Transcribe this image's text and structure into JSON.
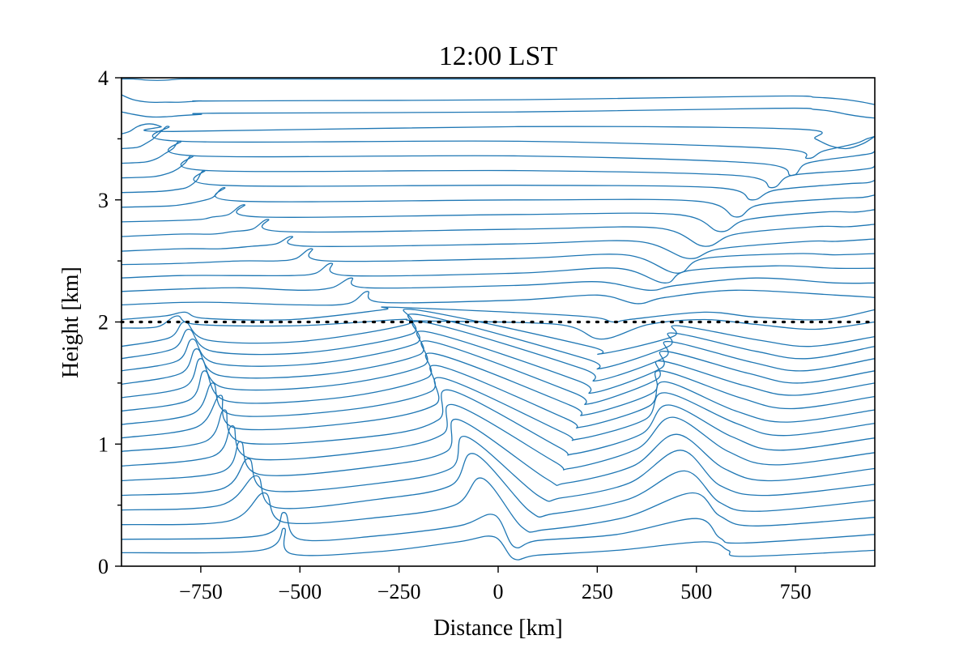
{
  "chart_data": {
    "type": "line",
    "title": "12:00 LST",
    "xlabel": "Distance [km]",
    "ylabel": "Height [km]",
    "xlim": [
      -950,
      950
    ],
    "ylim": [
      0,
      4
    ],
    "xticks": [
      -750,
      -500,
      -250,
      0,
      250,
      500,
      750
    ],
    "xtick_labels": [
      "−750",
      "−500",
      "−250",
      "0",
      "250",
      "500",
      "750"
    ],
    "yticks": [
      0,
      1,
      2,
      3,
      4
    ],
    "ytick_labels": [
      "0",
      "1",
      "2",
      "3",
      "4"
    ],
    "y_minor_ticks": [
      0.5,
      1.5,
      2.5,
      3.5
    ],
    "grid": false,
    "reference_line": {
      "y": 2.0,
      "style": "dotted",
      "color": "#000000"
    },
    "line_color": "#1f77b4",
    "series_note_levels_km": [
      0.115,
      0.23,
      0.345,
      0.46,
      0.575,
      0.69,
      0.805,
      0.92,
      1.035,
      1.15,
      1.265,
      1.38,
      1.495,
      1.61,
      1.725,
      1.84,
      1.955,
      2.08,
      2.2,
      2.32,
      2.44,
      2.56,
      2.68,
      2.8,
      2.92,
      3.04,
      3.16,
      3.28,
      3.4,
      3.52,
      3.64,
      3.76,
      3.88,
      4.0
    ],
    "series": [
      {
        "x": [
          -950,
          -600,
          -540,
          -520,
          -300,
          -100,
          -10,
          40,
          100,
          300,
          520,
          580,
          620,
          950
        ],
        "y": [
          0.11,
          0.13,
          0.31,
          0.1,
          0.12,
          0.2,
          0.24,
          0.06,
          0.09,
          0.13,
          0.2,
          0.13,
          0.08,
          0.13
        ]
      },
      {
        "x": [
          -950,
          -600,
          -540,
          -500,
          -300,
          -100,
          -10,
          40,
          100,
          300,
          500,
          560,
          620,
          950
        ],
        "y": [
          0.22,
          0.25,
          0.44,
          0.22,
          0.25,
          0.33,
          0.42,
          0.16,
          0.21,
          0.26,
          0.39,
          0.23,
          0.19,
          0.26
        ]
      },
      {
        "x": [
          -950,
          -680,
          -590,
          -540,
          -300,
          -110,
          -40,
          60,
          120,
          320,
          490,
          560,
          650,
          950
        ],
        "y": [
          0.34,
          0.37,
          0.6,
          0.36,
          0.4,
          0.5,
          0.72,
          0.32,
          0.3,
          0.4,
          0.6,
          0.41,
          0.33,
          0.4
        ]
      },
      {
        "x": [
          -950,
          -700,
          -610,
          -560,
          -300,
          -120,
          -60,
          80,
          140,
          330,
          470,
          560,
          660,
          950
        ],
        "y": [
          0.46,
          0.5,
          0.74,
          0.48,
          0.55,
          0.66,
          0.92,
          0.45,
          0.43,
          0.55,
          0.78,
          0.52,
          0.45,
          0.54
        ]
      },
      {
        "x": [
          -950,
          -700,
          -630,
          -580,
          -300,
          -120,
          -80,
          100,
          160,
          330,
          460,
          560,
          680,
          950
        ],
        "y": [
          0.58,
          0.63,
          0.88,
          0.62,
          0.68,
          0.8,
          1.06,
          0.58,
          0.56,
          0.68,
          0.95,
          0.66,
          0.58,
          0.67
        ]
      },
      {
        "x": [
          -950,
          -700,
          -650,
          -600,
          -300,
          -130,
          -100,
          120,
          170,
          340,
          450,
          570,
          690,
          950
        ],
        "y": [
          0.7,
          0.77,
          1.02,
          0.75,
          0.82,
          0.94,
          1.2,
          0.72,
          0.68,
          0.82,
          1.08,
          0.8,
          0.7,
          0.8
        ]
      },
      {
        "x": [
          -950,
          -720,
          -670,
          -620,
          -300,
          -140,
          -110,
          140,
          180,
          350,
          440,
          580,
          700,
          950
        ],
        "y": [
          0.82,
          0.9,
          1.15,
          0.88,
          0.95,
          1.08,
          1.32,
          0.86,
          0.8,
          0.96,
          1.22,
          0.94,
          0.83,
          0.93
        ]
      },
      {
        "x": [
          -950,
          -740,
          -690,
          -640,
          -300,
          -150,
          -120,
          150,
          190,
          360,
          430,
          590,
          710,
          950
        ],
        "y": [
          0.94,
          1.02,
          1.28,
          1.01,
          1.07,
          1.2,
          1.44,
          0.98,
          0.92,
          1.08,
          1.32,
          1.06,
          0.95,
          1.05
        ]
      },
      {
        "x": [
          -950,
          -760,
          -700,
          -660,
          -350,
          -160,
          -140,
          160,
          200,
          370,
          420,
          600,
          720,
          950
        ],
        "y": [
          1.05,
          1.14,
          1.4,
          1.13,
          1.18,
          1.32,
          1.54,
          1.1,
          1.04,
          1.2,
          1.42,
          1.17,
          1.07,
          1.17
        ]
      },
      {
        "x": [
          -950,
          -770,
          -720,
          -670,
          -380,
          -170,
          -150,
          170,
          210,
          380,
          420,
          600,
          730,
          950
        ],
        "y": [
          1.16,
          1.25,
          1.5,
          1.24,
          1.28,
          1.43,
          1.64,
          1.21,
          1.14,
          1.31,
          1.51,
          1.27,
          1.18,
          1.28
        ]
      },
      {
        "x": [
          -950,
          -780,
          -740,
          -680,
          -400,
          -180,
          -160,
          180,
          220,
          390,
          410,
          610,
          740,
          950
        ],
        "y": [
          1.27,
          1.36,
          1.6,
          1.35,
          1.38,
          1.54,
          1.74,
          1.32,
          1.24,
          1.42,
          1.6,
          1.38,
          1.29,
          1.39
        ]
      },
      {
        "x": [
          -950,
          -790,
          -750,
          -690,
          -420,
          -190,
          -170,
          190,
          230,
          400,
          410,
          620,
          750,
          950
        ],
        "y": [
          1.38,
          1.47,
          1.7,
          1.46,
          1.48,
          1.64,
          1.84,
          1.42,
          1.33,
          1.53,
          1.68,
          1.48,
          1.4,
          1.5
        ]
      },
      {
        "x": [
          -950,
          -800,
          -760,
          -700,
          -440,
          -200,
          -180,
          200,
          240,
          410,
          420,
          630,
          760,
          950
        ],
        "y": [
          1.49,
          1.58,
          1.78,
          1.56,
          1.57,
          1.73,
          1.92,
          1.52,
          1.42,
          1.62,
          1.76,
          1.58,
          1.5,
          1.6
        ]
      },
      {
        "x": [
          -950,
          -810,
          -770,
          -710,
          -460,
          -210,
          -190,
          210,
          250,
          420,
          430,
          640,
          770,
          950
        ],
        "y": [
          1.6,
          1.68,
          1.86,
          1.66,
          1.66,
          1.82,
          2.0,
          1.62,
          1.52,
          1.71,
          1.84,
          1.67,
          1.6,
          1.7
        ]
      },
      {
        "x": [
          -950,
          -820,
          -780,
          -720,
          -480,
          -220,
          -200,
          220,
          260,
          430,
          440,
          650,
          780,
          950
        ],
        "y": [
          1.7,
          1.78,
          1.94,
          1.76,
          1.75,
          1.9,
          2.06,
          1.7,
          1.62,
          1.8,
          1.91,
          1.76,
          1.7,
          1.8
        ]
      },
      {
        "x": [
          -950,
          -830,
          -790,
          -730,
          -500,
          -230,
          -210,
          230,
          260,
          440,
          450,
          660,
          790,
          950
        ],
        "y": [
          1.8,
          1.87,
          2.0,
          1.85,
          1.84,
          1.98,
          2.1,
          1.8,
          1.74,
          1.88,
          1.97,
          1.85,
          1.8,
          1.88
        ]
      },
      {
        "x": [
          -950,
          -860,
          -810,
          -760,
          -500,
          -250,
          -200,
          150,
          260,
          380,
          520,
          650,
          800,
          950
        ],
        "y": [
          1.95,
          1.96,
          2.05,
          1.98,
          1.97,
          2.02,
          2.01,
          1.98,
          1.86,
          1.98,
          2.02,
          1.98,
          1.94,
          2.0
        ]
      },
      {
        "x": [
          -950,
          -840,
          -790,
          -740,
          -520,
          -290,
          -260,
          200,
          290,
          330,
          520,
          650,
          820,
          950
        ],
        "y": [
          2.02,
          2.05,
          2.08,
          2.03,
          2.02,
          2.1,
          2.12,
          2.05,
          2.0,
          2.02,
          2.08,
          2.04,
          2.02,
          2.1
        ]
      },
      {
        "x": [
          -950,
          -800,
          -700,
          -500,
          -380,
          -330,
          -290,
          50,
          250,
          350,
          420,
          600,
          850,
          950
        ],
        "y": [
          2.14,
          2.16,
          2.16,
          2.14,
          2.15,
          2.25,
          2.16,
          2.18,
          2.22,
          2.15,
          2.2,
          2.26,
          2.22,
          2.2
        ]
      },
      {
        "x": [
          -950,
          -800,
          -650,
          -500,
          -420,
          -370,
          -330,
          50,
          250,
          380,
          450,
          650,
          850,
          950
        ],
        "y": [
          2.25,
          2.27,
          2.28,
          2.26,
          2.28,
          2.36,
          2.28,
          2.3,
          2.33,
          2.26,
          2.3,
          2.36,
          2.32,
          2.32
        ]
      },
      {
        "x": [
          -950,
          -800,
          -650,
          -520,
          -460,
          -420,
          -380,
          50,
          300,
          420,
          480,
          700,
          850,
          950
        ],
        "y": [
          2.36,
          2.38,
          2.38,
          2.38,
          2.4,
          2.48,
          2.38,
          2.4,
          2.44,
          2.32,
          2.42,
          2.46,
          2.44,
          2.44
        ]
      },
      {
        "x": [
          -950,
          -800,
          -650,
          -560,
          -510,
          -470,
          -430,
          50,
          320,
          450,
          520,
          750,
          850,
          950
        ],
        "y": [
          2.47,
          2.48,
          2.5,
          2.5,
          2.52,
          2.6,
          2.5,
          2.52,
          2.55,
          2.4,
          2.52,
          2.56,
          2.55,
          2.56
        ]
      },
      {
        "x": [
          -950,
          -800,
          -700,
          -620,
          -560,
          -520,
          -480,
          50,
          350,
          480,
          560,
          780,
          850,
          950
        ],
        "y": [
          2.58,
          2.6,
          2.6,
          2.62,
          2.64,
          2.7,
          2.62,
          2.64,
          2.66,
          2.52,
          2.6,
          2.66,
          2.66,
          2.68
        ]
      },
      {
        "x": [
          -950,
          -800,
          -720,
          -670,
          -620,
          -580,
          -540,
          50,
          400,
          520,
          600,
          800,
          880,
          950
        ],
        "y": [
          2.7,
          2.72,
          2.72,
          2.74,
          2.76,
          2.84,
          2.74,
          2.76,
          2.77,
          2.62,
          2.72,
          2.78,
          2.78,
          2.8
        ]
      },
      {
        "x": [
          -950,
          -820,
          -750,
          -720,
          -680,
          -640,
          -600,
          50,
          450,
          560,
          630,
          820,
          900,
          950
        ],
        "y": [
          2.82,
          2.83,
          2.84,
          2.86,
          2.88,
          2.96,
          2.86,
          2.88,
          2.88,
          2.74,
          2.84,
          2.9,
          2.9,
          2.92
        ]
      },
      {
        "x": [
          -950,
          -830,
          -780,
          -750,
          -720,
          -690,
          -650,
          50,
          500,
          600,
          660,
          850,
          920,
          950
        ],
        "y": [
          2.94,
          2.95,
          2.97,
          2.99,
          3.02,
          3.1,
          2.99,
          3.0,
          2.99,
          2.86,
          2.96,
          3.01,
          3.02,
          3.04
        ]
      },
      {
        "x": [
          -950,
          -850,
          -800,
          -780,
          -760,
          -740,
          -700,
          50,
          550,
          640,
          700,
          870,
          930,
          950
        ],
        "y": [
          3.06,
          3.07,
          3.09,
          3.11,
          3.16,
          3.24,
          3.12,
          3.12,
          3.1,
          3.0,
          3.08,
          3.13,
          3.14,
          3.16
        ]
      },
      {
        "x": [
          -950,
          -870,
          -830,
          -810,
          -790,
          -770,
          -730,
          50,
          600,
          690,
          740,
          890,
          940,
          950
        ],
        "y": [
          3.18,
          3.19,
          3.22,
          3.25,
          3.3,
          3.36,
          3.24,
          3.24,
          3.2,
          3.1,
          3.2,
          3.24,
          3.26,
          3.28
        ]
      },
      {
        "x": [
          -950,
          -890,
          -860,
          -840,
          -820,
          -800,
          -760,
          50,
          650,
          740,
          780,
          900,
          940,
          950
        ],
        "y": [
          3.3,
          3.31,
          3.34,
          3.38,
          3.42,
          3.48,
          3.36,
          3.36,
          3.3,
          3.2,
          3.3,
          3.36,
          3.38,
          3.4
        ]
      },
      {
        "x": [
          -950,
          -910,
          -890,
          -870,
          -850,
          -830,
          -800,
          50,
          700,
          780,
          820,
          900,
          930,
          950
        ],
        "y": [
          3.42,
          3.43,
          3.46,
          3.5,
          3.56,
          3.6,
          3.48,
          3.48,
          3.42,
          3.34,
          3.4,
          3.46,
          3.5,
          3.52
        ]
      },
      {
        "x": [
          -950,
          -930,
          -910,
          -890,
          -870,
          -850,
          -820,
          50,
          750,
          800,
          840,
          880,
          920,
          950
        ],
        "y": [
          3.54,
          3.56,
          3.6,
          3.62,
          3.62,
          3.6,
          3.56,
          3.6,
          3.58,
          3.5,
          3.44,
          3.42,
          3.46,
          3.52
        ]
      },
      {
        "x": [
          -950,
          -920,
          -880,
          -840,
          -800,
          -750,
          -700,
          50,
          700,
          800,
          850,
          880,
          920,
          950
        ],
        "y": [
          3.72,
          3.7,
          3.68,
          3.68,
          3.69,
          3.7,
          3.71,
          3.72,
          3.75,
          3.74,
          3.72,
          3.7,
          3.68,
          3.67
        ]
      },
      {
        "x": [
          -950,
          -920,
          -880,
          -840,
          -800,
          -750,
          -700,
          50,
          700,
          800,
          850,
          880,
          920,
          950
        ],
        "y": [
          3.86,
          3.82,
          3.8,
          3.8,
          3.8,
          3.81,
          3.81,
          3.82,
          3.85,
          3.84,
          3.83,
          3.82,
          3.8,
          3.78
        ]
      },
      {
        "x": [
          -950,
          -920,
          -880,
          -840,
          -800,
          -750,
          -700,
          50,
          700,
          800,
          850,
          880,
          920,
          950
        ],
        "y": [
          3.99,
          3.99,
          3.98,
          3.98,
          3.99,
          3.99,
          3.99,
          3.99,
          4.0,
          4.0,
          4.0,
          4.0,
          4.0,
          4.0
        ]
      }
    ]
  }
}
